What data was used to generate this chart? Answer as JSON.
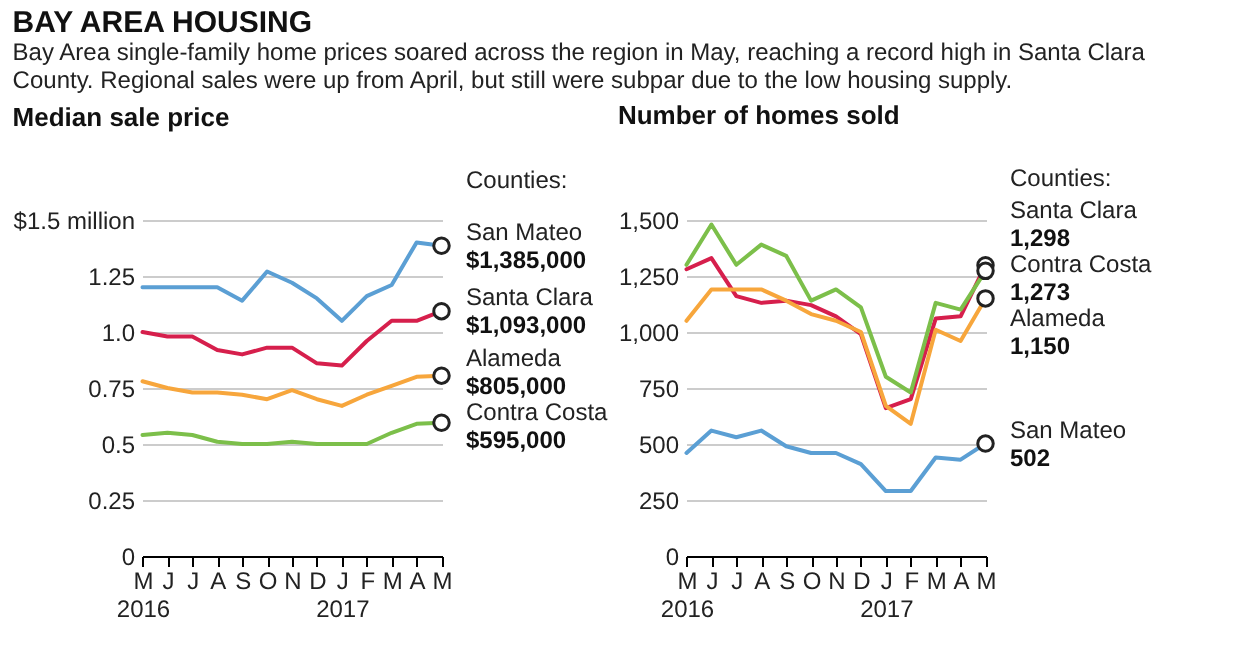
{
  "chart_data": [
    {
      "type": "line",
      "title": "BAY AREA HOUSING",
      "subtitle": "Bay Area single-family home prices soared across the region in May, reaching a record high in Santa Clara County. Regional sales were up from April, but still were subpar due to the low housing supply.",
      "ylabel": "Median sale price",
      "legend_title": "Counties:",
      "categories": [
        "M\n2016",
        "J",
        "J",
        "A",
        "S",
        "O",
        "N",
        "D",
        "J\n2017",
        "F",
        "M",
        "A",
        "M"
      ],
      "ylim": [
        0,
        1.5
      ],
      "yticks": [
        0,
        0.25,
        0.5,
        0.75,
        {
          "value": 1,
          "label": "1.0"
        },
        1.25,
        {
          "value": 1.5,
          "label": "$1.5 million"
        }
      ],
      "grid": "y",
      "annotations": [
        "$1,385,000",
        "$1,093,000",
        "$805,000",
        "$595,000"
      ],
      "series": [
        {
          "name": "San Mateo",
          "color": "#5b9fd4",
          "values": [
            1.2,
            1.2,
            1.2,
            1.2,
            1.14,
            1.27,
            1.22,
            1.15,
            1.05,
            1.16,
            1.21,
            1.4,
            1.385
          ]
        },
        {
          "name": "Santa Clara",
          "color": "#d61f4c",
          "values": [
            1.0,
            0.98,
            0.98,
            0.92,
            0.9,
            0.93,
            0.93,
            0.86,
            0.85,
            0.96,
            1.05,
            1.05,
            1.093
          ]
        },
        {
          "name": "Alameda",
          "color": "#f7a63c",
          "values": [
            0.78,
            0.75,
            0.73,
            0.73,
            0.72,
            0.7,
            0.74,
            0.7,
            0.67,
            0.72,
            0.76,
            0.8,
            0.805
          ]
        },
        {
          "name": "Contra Costa",
          "color": "#7cbf4a",
          "values": [
            0.54,
            0.55,
            0.54,
            0.51,
            0.5,
            0.5,
            0.51,
            0.5,
            0.5,
            0.5,
            0.55,
            0.59,
            0.595
          ]
        }
      ]
    },
    {
      "type": "line",
      "ylabel": "Number of homes sold",
      "legend_title": "Counties:",
      "categories": [
        "M\n2016",
        "J",
        "J",
        "A",
        "S",
        "O",
        "N",
        "D",
        "J\n2017",
        "F",
        "M",
        "A",
        "M"
      ],
      "ylim": [
        0,
        1500
      ],
      "yticks": [
        0,
        250,
        500,
        750,
        {
          "value": 1000,
          "label": "1,000"
        },
        {
          "value": 1250,
          "label": "1,250"
        },
        {
          "value": 1500,
          "label": "1,500"
        }
      ],
      "grid": "y",
      "series": [
        {
          "name": "Santa Clara",
          "color": "#d61f4c",
          "values": [
            1280,
            1330,
            1160,
            1130,
            1140,
            1120,
            1070,
            990,
            660,
            700,
            1060,
            1070,
            1298
          ],
          "value_labels": [
            null,
            null,
            null,
            null,
            null,
            null,
            null,
            null,
            null,
            null,
            null,
            null,
            "1,298"
          ]
        },
        {
          "name": "Contra Costa",
          "color": "#7cbf4a",
          "values": [
            1300,
            1480,
            1300,
            1390,
            1340,
            1140,
            1190,
            1110,
            800,
            730,
            1130,
            1100,
            1273
          ],
          "value_labels": [
            null,
            null,
            null,
            null,
            null,
            null,
            null,
            null,
            null,
            null,
            null,
            null,
            "1,273"
          ]
        },
        {
          "name": "Alameda",
          "color": "#f7a63c",
          "values": [
            1050,
            1190,
            1190,
            1190,
            1140,
            1080,
            1050,
            1000,
            670,
            590,
            1010,
            960,
            1150
          ],
          "value_labels": [
            null,
            null,
            null,
            null,
            null,
            null,
            null,
            null,
            null,
            null,
            null,
            null,
            "1,150"
          ]
        },
        {
          "name": "San Mateo",
          "color": "#5b9fd4",
          "values": [
            460,
            560,
            530,
            560,
            490,
            460,
            460,
            410,
            290,
            290,
            440,
            430,
            502
          ],
          "value_labels": [
            null,
            null,
            null,
            null,
            null,
            null,
            null,
            null,
            null,
            null,
            null,
            null,
            "502"
          ]
        }
      ]
    }
  ]
}
